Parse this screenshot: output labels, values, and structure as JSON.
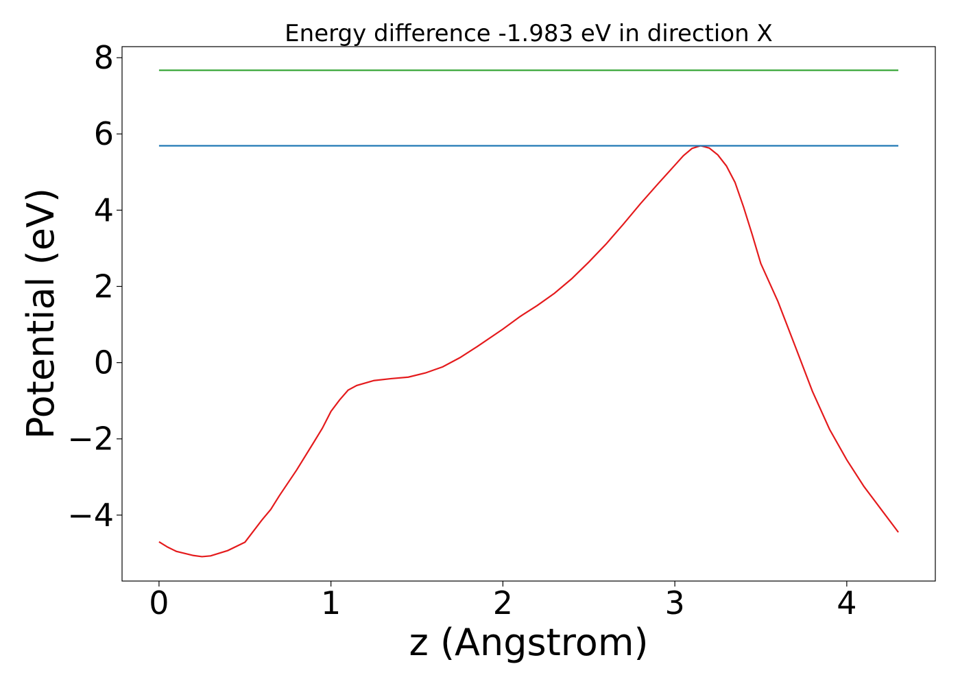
{
  "chart_data": {
    "type": "line",
    "title": "Energy difference -1.983 eV in direction X",
    "xlabel": "z (Angstrom)",
    "ylabel": "Potential (eV)",
    "xlim": [
      -0.215,
      4.515
    ],
    "ylim": [
      -5.73,
      8.29
    ],
    "xticks": [
      0,
      1,
      2,
      3,
      4
    ],
    "yticks": [
      {
        "value": -4,
        "label": "−4"
      },
      {
        "value": -2,
        "label": "−2"
      },
      0,
      2,
      4,
      6,
      8
    ],
    "series": [
      {
        "color": "#e41a1c",
        "x": [
          0,
          0.05,
          0.1,
          0.2,
          0.25,
          0.3,
          0.4,
          0.5,
          0.6,
          0.65,
          0.7,
          0.8,
          0.9,
          0.95,
          1.0,
          1.05,
          1.1,
          1.15,
          1.25,
          1.35,
          1.45,
          1.55,
          1.65,
          1.75,
          1.85,
          2.0,
          2.1,
          2.2,
          2.3,
          2.4,
          2.5,
          2.6,
          2.7,
          2.8,
          2.9,
          3.0,
          3.05,
          3.1,
          3.15,
          3.2,
          3.25,
          3.3,
          3.35,
          3.4,
          3.45,
          3.5,
          3.6,
          3.7,
          3.8,
          3.9,
          4.0,
          4.1,
          4.2,
          4.3
        ],
        "values": [
          -4.7,
          -4.84,
          -4.95,
          -5.06,
          -5.09,
          -5.07,
          -4.93,
          -4.71,
          -4.12,
          -3.85,
          -3.49,
          -2.82,
          -2.09,
          -1.72,
          -1.28,
          -0.98,
          -0.72,
          -0.6,
          -0.47,
          -0.42,
          -0.38,
          -0.27,
          -0.11,
          0.13,
          0.42,
          0.88,
          1.21,
          1.5,
          1.82,
          2.2,
          2.64,
          3.11,
          3.63,
          4.17,
          4.68,
          5.18,
          5.43,
          5.62,
          5.69,
          5.63,
          5.45,
          5.16,
          4.73,
          4.08,
          3.36,
          2.6,
          1.6,
          0.43,
          -0.75,
          -1.75,
          -2.55,
          -3.25,
          -3.85,
          -4.45
        ]
      },
      {
        "color": "#1f77b4",
        "x": [
          0,
          4.3
        ],
        "values": [
          5.69,
          5.69
        ]
      },
      {
        "color": "#2ca02c",
        "x": [
          0,
          4.3
        ],
        "values": [
          7.67,
          7.67
        ]
      }
    ]
  }
}
